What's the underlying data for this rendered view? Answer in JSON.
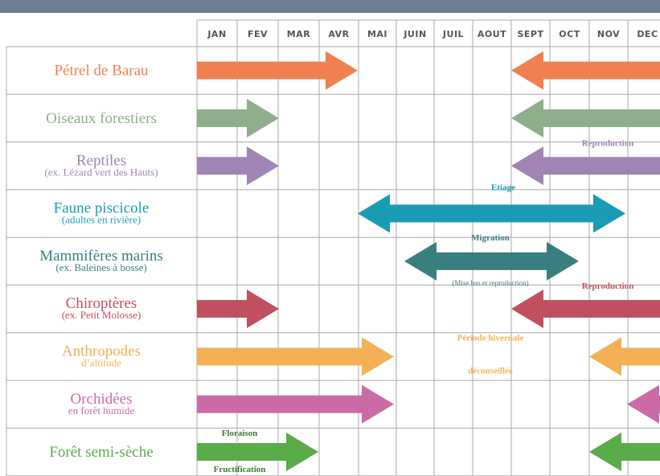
{
  "months": [
    "JAN",
    "FEV",
    "MAR",
    "AVR",
    "MAI",
    "JUIN",
    "JUIL",
    "AOUT",
    "SEPT",
    "OCT",
    "NOV",
    "DEC"
  ],
  "rows": [
    {
      "label": "Pétrel de Barau"
    },
    {
      "label": "Oiseaux forestiers"
    },
    {
      "label": "Reptiles",
      "sublabel": "(ex. Lézard vert des Hauts)",
      "note": "Reproduction"
    },
    {
      "label": "Faune piscicole",
      "sublabel": "(adultes en rivière)",
      "note": "Etiage"
    },
    {
      "label": "Mammifères marins",
      "sublabel": "(ex. Baleines à bosse)",
      "note": "Migration",
      "note2": "(Mise bas et reproduction)"
    },
    {
      "label": "Chiroptères",
      "sublabel": "(ex. Petit Molosse)",
      "note": "Reproduction"
    },
    {
      "label": "Anthropodes",
      "sublabel": "d’altitude",
      "note": "Période hivernale",
      "note2": "déconseillée"
    },
    {
      "label": "Orchidées",
      "sublabel": "en forêt humide"
    },
    {
      "label": "Forêt semi-sèche",
      "note": "Floraison",
      "note2": "Fructification"
    }
  ]
}
